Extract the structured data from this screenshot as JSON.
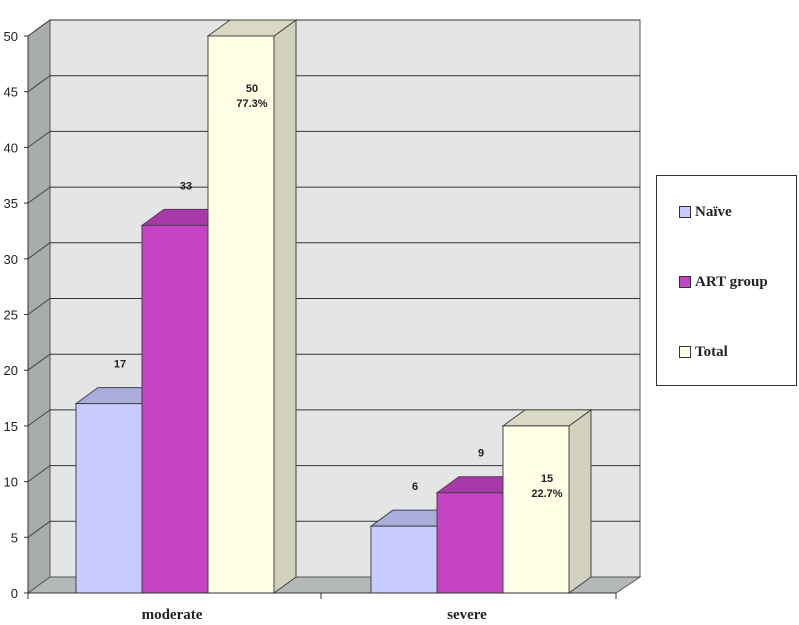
{
  "chart_data": {
    "type": "bar",
    "categories": [
      "moderate",
      "severe"
    ],
    "series": [
      {
        "name": "Naïve",
        "values": [
          17,
          6
        ],
        "color": "#c8cbff"
      },
      {
        "name": "ART group",
        "values": [
          33,
          9
        ],
        "color": "#c444c4"
      },
      {
        "name": "Total",
        "values": [
          50,
          15
        ],
        "color": "#ffffe6"
      }
    ],
    "data_labels": [
      [
        [
          "17"
        ],
        [
          "6"
        ]
      ],
      [
        [
          "33"
        ],
        [
          "9"
        ]
      ],
      [
        [
          "50",
          "77.3%"
        ],
        [
          "15",
          "22.7%"
        ]
      ]
    ],
    "ylim": [
      0,
      50
    ],
    "yticks": [
      0,
      5,
      10,
      15,
      20,
      25,
      30,
      35,
      40,
      45,
      50
    ],
    "grid": true,
    "legend": "right",
    "style": "3d-clustered-column",
    "title": "",
    "xlabel": "",
    "ylabel": ""
  },
  "legend": {
    "items": [
      {
        "label": "Naïve",
        "color": "#c8cbff"
      },
      {
        "label": "ART group",
        "color": "#c444c4"
      },
      {
        "label": "Total",
        "color": "#ffffe6"
      }
    ]
  }
}
